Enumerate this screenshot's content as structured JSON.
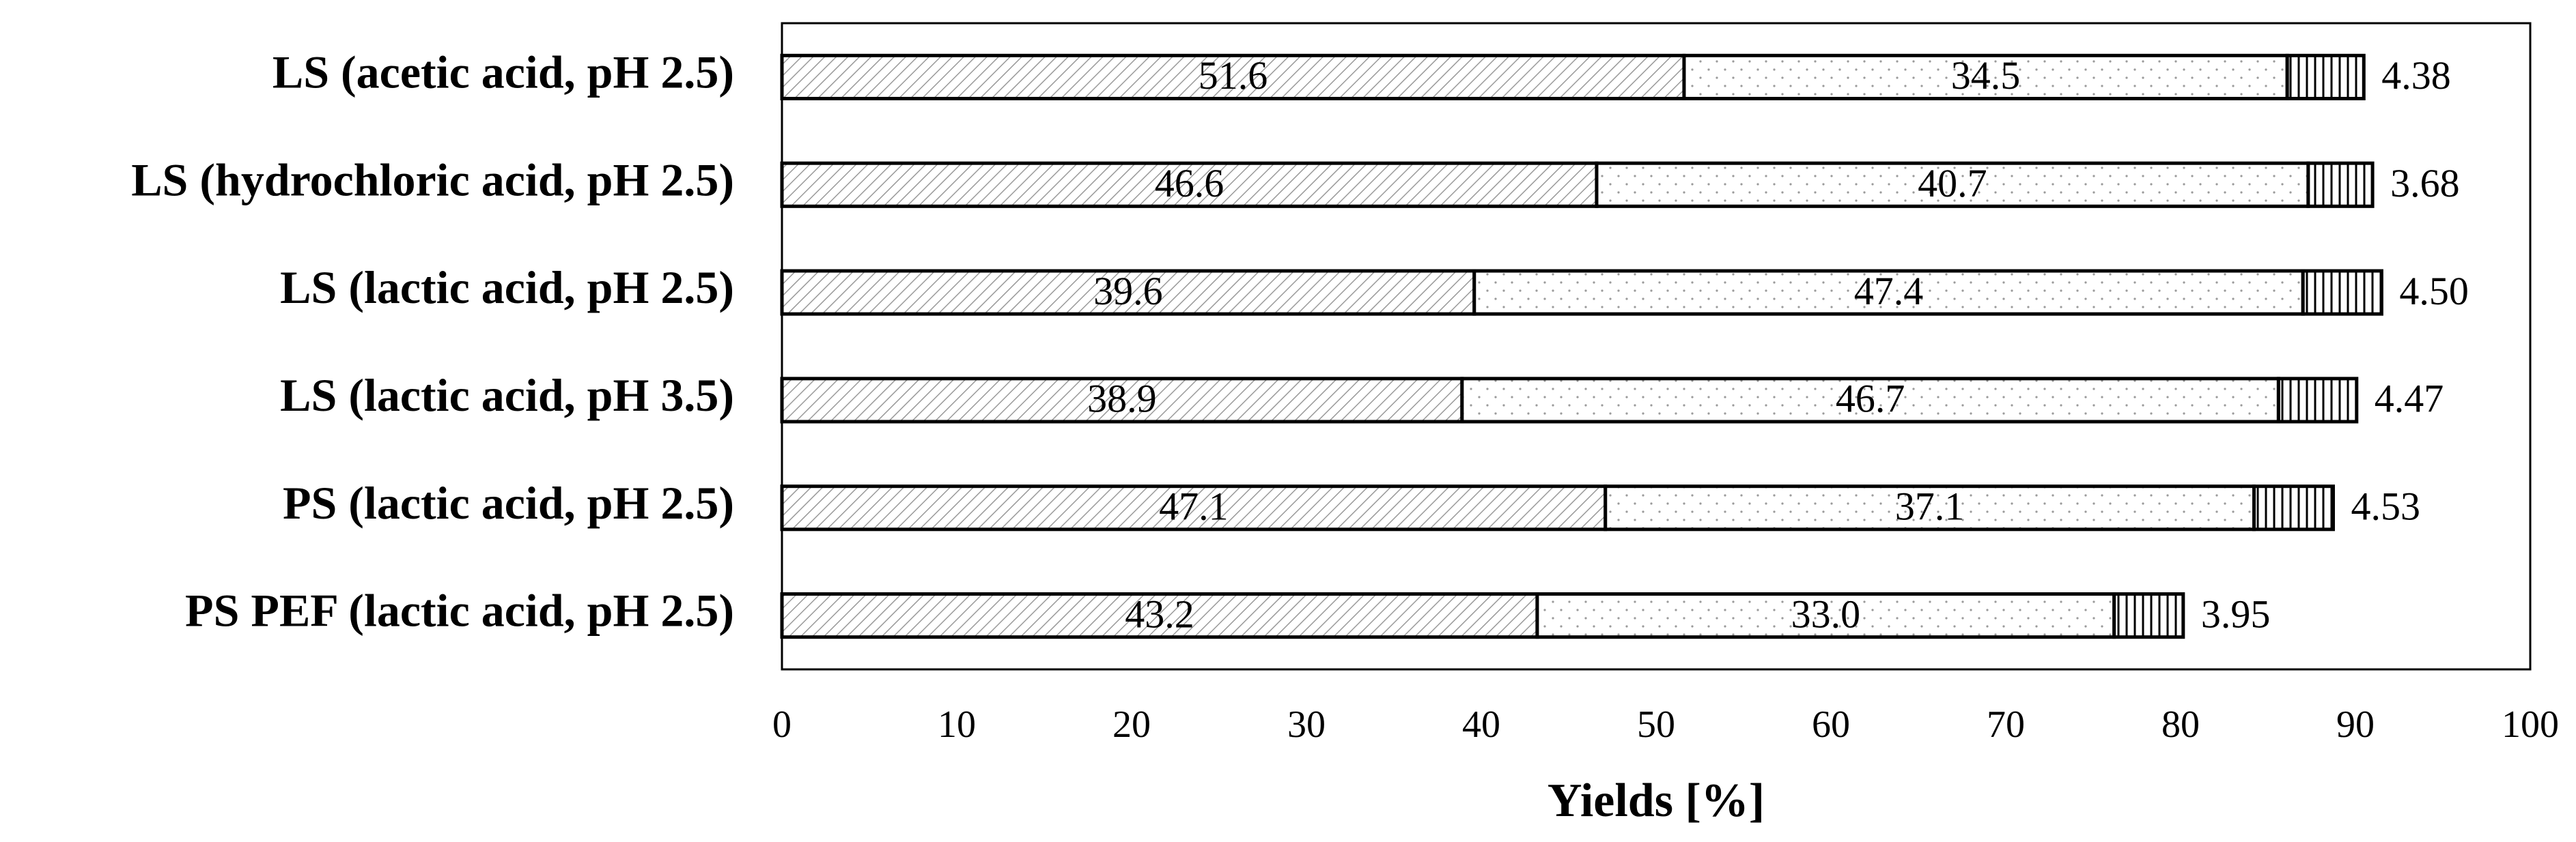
{
  "chart_data": {
    "type": "stacked_barh",
    "categories": [
      "LS (acetic acid, pH 2.5)",
      "LS (hydrochloric acid, pH 2.5)",
      "LS (lactic acid, pH 2.5)",
      "LS (lactic acid, pH 3.5)",
      "PS (lactic acid, pH 2.5)",
      "PS PEF (lactic acid, pH 2.5)"
    ],
    "series": [
      {
        "pattern": "diagonal",
        "color": "#9a9a9a",
        "values": [
          51.6,
          46.6,
          39.6,
          38.9,
          47.1,
          43.2
        ],
        "label_position": "center"
      },
      {
        "pattern": "dots",
        "color": "#9a9a9a",
        "values": [
          34.5,
          40.7,
          47.4,
          46.7,
          37.1,
          33.0
        ],
        "value_labels": [
          "34.5",
          "40.7",
          "47.4",
          "46.7",
          "37.1",
          "33.0"
        ],
        "label_position": "center"
      },
      {
        "pattern": "vertical",
        "color": "#000000",
        "values": [
          4.38,
          3.68,
          4.5,
          4.47,
          4.53,
          3.95
        ],
        "value_labels": [
          "4.38",
          "3.68",
          "4.50",
          "4.47",
          "4.53",
          "3.95"
        ],
        "label_position": "outside"
      }
    ],
    "xlabel": "Yields [%]",
    "xlim": [
      0,
      100
    ],
    "xticks": [
      0,
      10,
      20,
      30,
      40,
      50,
      60,
      70,
      80,
      90,
      100
    ]
  }
}
